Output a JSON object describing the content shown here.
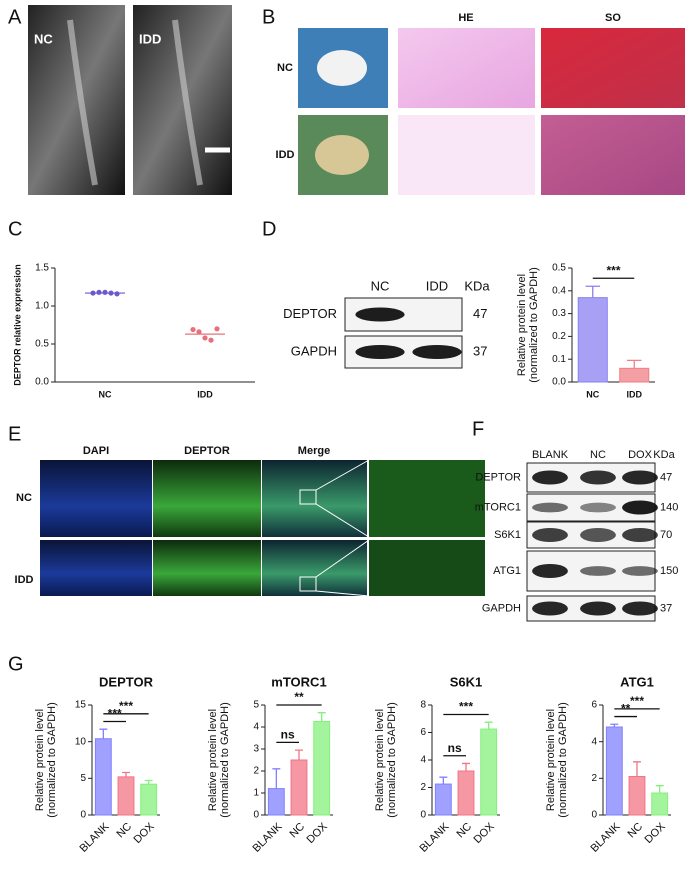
{
  "panel_labels": [
    "A",
    "B",
    "C",
    "D",
    "E",
    "F",
    "G"
  ],
  "mri": {
    "labels": [
      "NC",
      "IDD"
    ]
  },
  "histology": {
    "columns": [
      "HE",
      "SO"
    ],
    "rows": [
      "NC",
      "IDD"
    ]
  },
  "blot_d": {
    "lanes": [
      "NC",
      "IDD"
    ],
    "unit": "KDa",
    "rows": [
      {
        "name": "DEPTOR",
        "kda": 47
      },
      {
        "name": "GAPDH",
        "kda": 37
      }
    ]
  },
  "immunofluorescence": {
    "columns": [
      "DAPI",
      "DEPTOR",
      "Merge"
    ],
    "rows": [
      "NC",
      "IDD"
    ]
  },
  "blot_f": {
    "lanes": [
      "BLANK",
      "NC",
      "DOX"
    ],
    "unit": "KDa",
    "rows": [
      {
        "name": "DEPTOR",
        "kda": 47
      },
      {
        "name": "mTORC1",
        "kda": 140
      },
      {
        "name": "S6K1",
        "kda": 70
      },
      {
        "name": "ATG1",
        "kda": 150
      },
      {
        "name": "GAPDH",
        "kda": 37
      }
    ]
  },
  "chart_data": [
    {
      "type": "dot",
      "y_label": "DEPTOR relative expression",
      "categories": [
        "NC",
        "IDD"
      ],
      "colors": [
        "#6a5acd",
        "#e8707a"
      ],
      "points": [
        [
          1.17,
          1.18,
          1.18,
          1.17,
          1.16
        ],
        [
          0.69,
          0.66,
          0.58,
          0.55,
          0.7
        ]
      ],
      "means": [
        1.17,
        0.63
      ],
      "ylim": [
        0,
        1.5
      ],
      "yticks": [
        {
          "value": 0,
          "label": "0.0"
        },
        0.5,
        {
          "value": 1,
          "label": "1.0"
        },
        1.5
      ]
    },
    {
      "type": "bar",
      "y_label": [
        "Relative protein level",
        "(normalized to GAPDH)"
      ],
      "categories": [
        "NC",
        "IDD"
      ],
      "colors": [
        "#8a80f0",
        "#f07f86"
      ],
      "values": [
        0.37,
        0.06
      ],
      "errors": [
        0.05,
        0.035
      ],
      "significance": [
        {
          "pair": [
            0,
            1
          ],
          "label": "***"
        }
      ],
      "ylim": [
        0,
        0.5
      ],
      "yticks": [
        {
          "value": 0,
          "label": "0.0"
        },
        0.1,
        0.2,
        0.3,
        0.4,
        0.5
      ]
    },
    {
      "type": "bar",
      "title": "DEPTOR",
      "y_label": [
        "Relative protein level",
        "(normalized to GAPDH)"
      ],
      "categories": [
        "BLANK",
        "NC",
        "DOX"
      ],
      "colors": [
        "#8080ff",
        "#f27585",
        "#85f07d"
      ],
      "values": [
        10.4,
        5.2,
        4.2
      ],
      "errors": [
        1.3,
        0.6,
        0.5
      ],
      "significance": [
        {
          "pair": [
            0,
            1
          ],
          "label": "***"
        },
        {
          "pair": [
            0,
            2
          ],
          "label": "***"
        }
      ],
      "ylim": [
        0,
        15
      ],
      "yticks": [
        0,
        5,
        10,
        15
      ]
    },
    {
      "type": "bar",
      "title": "mTORC1",
      "y_label": [
        "Relative protein level",
        "(normalized to GAPDH)"
      ],
      "categories": [
        "BLANK",
        "NC",
        "DOX"
      ],
      "colors": [
        "#8080ff",
        "#f27585",
        "#85f07d"
      ],
      "values": [
        1.2,
        2.5,
        4.25
      ],
      "errors": [
        0.9,
        0.45,
        0.4
      ],
      "significance": [
        {
          "pair": [
            0,
            1
          ],
          "label": "ns"
        },
        {
          "pair": [
            0,
            2
          ],
          "label": "**"
        }
      ],
      "ylim": [
        0,
        5
      ],
      "yticks": [
        0,
        1,
        2,
        3,
        4,
        5
      ]
    },
    {
      "type": "bar",
      "title": "S6K1",
      "y_label": [
        "Relative protein level",
        "(normalized to GAPDH)"
      ],
      "categories": [
        "BLANK",
        "NC",
        "DOX"
      ],
      "colors": [
        "#8080ff",
        "#f27585",
        "#85f07d"
      ],
      "values": [
        2.25,
        3.2,
        6.25
      ],
      "errors": [
        0.5,
        0.55,
        0.5
      ],
      "significance": [
        {
          "pair": [
            0,
            1
          ],
          "label": "ns"
        },
        {
          "pair": [
            0,
            2
          ],
          "label": "***"
        }
      ],
      "ylim": [
        0,
        8
      ],
      "yticks": [
        0,
        2,
        4,
        6,
        8
      ]
    },
    {
      "type": "bar",
      "title": "ATG1",
      "y_label": [
        "Relative protein level",
        "(normalized to GAPDH)"
      ],
      "categories": [
        "BLANK",
        "NC",
        "DOX"
      ],
      "colors": [
        "#8080ff",
        "#f27585",
        "#85f07d"
      ],
      "values": [
        4.8,
        2.1,
        1.2
      ],
      "errors": [
        0.15,
        0.8,
        0.4
      ],
      "significance": [
        {
          "pair": [
            0,
            1
          ],
          "label": "**"
        },
        {
          "pair": [
            0,
            2
          ],
          "label": "***"
        }
      ],
      "ylim": [
        0,
        6
      ],
      "yticks": [
        0,
        2,
        4,
        6
      ]
    }
  ]
}
